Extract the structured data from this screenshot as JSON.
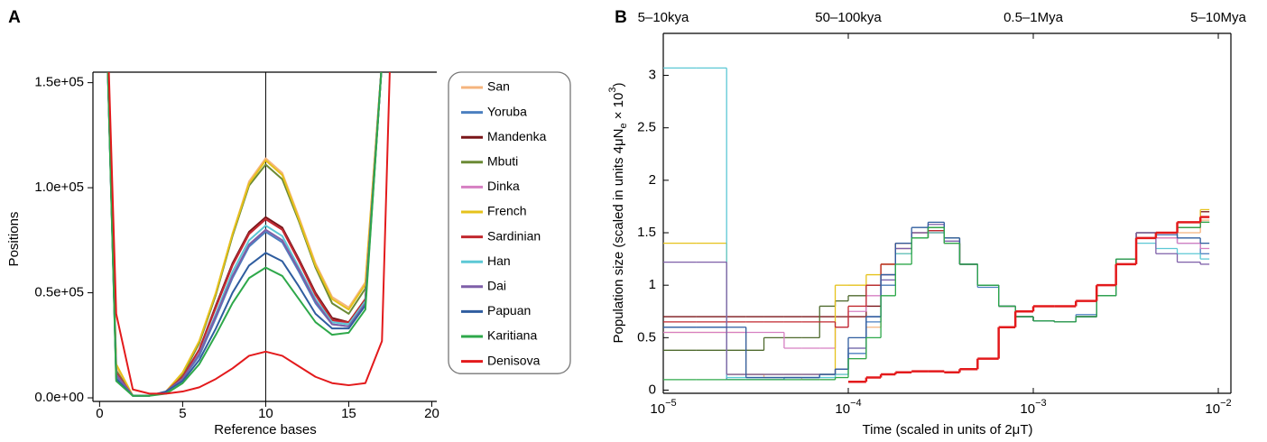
{
  "chart_data": [
    {
      "type": "line",
      "panel": "A",
      "xlabel": "Reference bases",
      "ylabel": "Positions",
      "x": [
        0,
        1,
        2,
        3,
        4,
        5,
        6,
        7,
        8,
        9,
        10,
        11,
        12,
        13,
        14,
        15,
        16,
        17,
        18
      ],
      "xlim": [
        -0.4,
        20.3
      ],
      "xticks": [
        0,
        5,
        10,
        15,
        20
      ],
      "ylim": [
        -1700,
        155000
      ],
      "yticks": [
        {
          "value": 0,
          "label": "0.0e+00"
        },
        {
          "value": 50000,
          "label": "0.5e+05"
        },
        {
          "value": 100000,
          "label": "1.0e+05"
        },
        {
          "value": 150000,
          "label": "1.5e+05"
        }
      ],
      "vline": 10,
      "legend": "right",
      "series": [
        {
          "name": "San",
          "color": "#f5b47e",
          "values": [
            300000,
            15000,
            1000,
            1000,
            3000,
            12000,
            27000,
            50000,
            78000,
            103000,
            114000,
            107000,
            86000,
            64000,
            48000,
            43000,
            55000,
            160000,
            300000
          ]
        },
        {
          "name": "Yoruba",
          "color": "#4b7fc0",
          "values": [
            300000,
            10000,
            1000,
            1000,
            3000,
            9000,
            20000,
            38000,
            57000,
            72000,
            79000,
            74000,
            60000,
            45000,
            35000,
            34000,
            45000,
            160000,
            300000
          ]
        },
        {
          "name": "Mandenka",
          "color": "#7a1518",
          "values": [
            300000,
            12000,
            1000,
            1000,
            3000,
            10000,
            23000,
            44000,
            64000,
            79000,
            86000,
            81000,
            66000,
            50000,
            38000,
            36000,
            47000,
            160000,
            300000
          ]
        },
        {
          "name": "Mbuti",
          "color": "#6b8a35",
          "values": [
            300000,
            13000,
            1000,
            1000,
            3000,
            11000,
            26000,
            49000,
            77000,
            101000,
            111000,
            104000,
            84000,
            62000,
            45000,
            40000,
            52000,
            160000,
            300000
          ]
        },
        {
          "name": "Dinka",
          "color": "#d67fc2",
          "values": [
            300000,
            12000,
            1000,
            1000,
            3000,
            10000,
            23000,
            43000,
            63000,
            78000,
            85000,
            80000,
            65000,
            49000,
            37000,
            35000,
            46000,
            160000,
            300000
          ]
        },
        {
          "name": "French",
          "color": "#e6c21b",
          "values": [
            300000,
            16000,
            1000,
            1000,
            3000,
            12000,
            27000,
            50000,
            78000,
            102000,
            113000,
            106000,
            85000,
            63000,
            47000,
            42000,
            54000,
            160000,
            300000
          ]
        },
        {
          "name": "Sardinian",
          "color": "#c1272d",
          "values": [
            300000,
            12000,
            1000,
            1000,
            3000,
            10000,
            23000,
            43000,
            63000,
            78000,
            85000,
            80000,
            65000,
            49000,
            37000,
            36000,
            47000,
            160000,
            300000
          ]
        },
        {
          "name": "Han",
          "color": "#5cc8d5",
          "values": [
            300000,
            11000,
            1000,
            1000,
            3000,
            9000,
            21000,
            40000,
            60000,
            75000,
            82000,
            77000,
            62000,
            47000,
            36000,
            35000,
            46000,
            160000,
            300000
          ]
        },
        {
          "name": "Dai",
          "color": "#7e5fa8",
          "values": [
            300000,
            11000,
            1000,
            1000,
            3000,
            9000,
            21000,
            39000,
            58000,
            73000,
            80000,
            75000,
            61000,
            46000,
            35000,
            34000,
            45000,
            160000,
            300000
          ]
        },
        {
          "name": "Papuan",
          "color": "#2f5d9f",
          "values": [
            300000,
            9000,
            1000,
            1000,
            3000,
            8000,
            18000,
            33000,
            50000,
            63000,
            69000,
            65000,
            53000,
            40000,
            33000,
            33000,
            44000,
            160000,
            300000
          ]
        },
        {
          "name": "Karitiana",
          "color": "#2ea84a",
          "values": [
            300000,
            8000,
            1000,
            1000,
            2000,
            7000,
            16000,
            30000,
            45000,
            57000,
            62000,
            58000,
            47000,
            36000,
            30000,
            31000,
            42000,
            160000,
            300000
          ]
        },
        {
          "name": "Denisova",
          "color": "#e31a1c",
          "values": [
            300000,
            40000,
            4000,
            2000,
            2000,
            3000,
            5000,
            9000,
            14000,
            20000,
            22000,
            20000,
            15000,
            10000,
            7000,
            6000,
            7000,
            27000,
            300000
          ]
        }
      ]
    },
    {
      "type": "step",
      "panel": "B",
      "xlabel": "Time (scaled in units of 2μT)",
      "ylabel": {
        "text": "Population size (scaled in units 4μN",
        "subscript": "e",
        "suffix": " × 10",
        "superscript": "3",
        "end": ")"
      },
      "xscale": "log",
      "x": [
        1e-05,
        1.5e-05,
        2.2e-05,
        2.8e-05,
        3.5e-05,
        4.5e-05,
        5.6e-05,
        7e-05,
        8.5e-05,
        0.0001,
        0.000125,
        0.00015,
        0.00018,
        0.00022,
        0.00027,
        0.00033,
        0.0004,
        0.0005,
        0.00065,
        0.0008,
        0.001,
        0.0013,
        0.0017,
        0.0022,
        0.0028,
        0.0036,
        0.0046,
        0.006,
        0.008
      ],
      "xlim": [
        1e-05,
        0.0117
      ],
      "xticks": [
        {
          "value": 1e-05,
          "label": "10",
          "exponent": "−5"
        },
        {
          "value": 0.0001,
          "label": "10",
          "exponent": "−4"
        },
        {
          "value": 0.001,
          "label": "10",
          "exponent": "−3"
        },
        {
          "value": 0.01,
          "label": "10",
          "exponent": "−2"
        }
      ],
      "x2ticks": [
        {
          "value": 1e-05,
          "label": "5–10kya"
        },
        {
          "value": 0.0001,
          "label": "50–100kya"
        },
        {
          "value": 0.001,
          "label": "0.5–1Mya"
        },
        {
          "value": 0.01,
          "label": "5–10Mya"
        }
      ],
      "ylim": [
        -0.03,
        3.4
      ],
      "yticks": [
        0,
        0.5,
        1,
        1.5,
        2,
        2.5,
        3
      ],
      "series": [
        {
          "color": "#f5b47e",
          "values": [
            0.55,
            0.55,
            0.55,
            0.15,
            0.12,
            0.12,
            0.1,
            0.1,
            0.15,
            0.3,
            0.6,
            1.0,
            1.3,
            1.45,
            1.5,
            1.4,
            1.2,
            1.0,
            0.8,
            0.7,
            0.66,
            0.65,
            0.7,
            0.9,
            1.25,
            1.45,
            1.45,
            1.5,
            1.62
          ]
        },
        {
          "color": "#4b7fc0",
          "values": [
            0.6,
            0.6,
            0.1,
            0.1,
            0.1,
            0.12,
            0.12,
            0.15,
            0.2,
            0.35,
            0.65,
            1.0,
            1.3,
            1.45,
            1.52,
            1.4,
            1.2,
            0.98,
            0.8,
            0.7,
            0.66,
            0.65,
            0.72,
            0.9,
            1.25,
            1.5,
            1.48,
            1.4,
            1.3
          ]
        },
        {
          "color": "#7a1518",
          "values": [
            0.7,
            0.7,
            0.7,
            0.7,
            0.7,
            0.7,
            0.7,
            0.7,
            0.7,
            0.7,
            0.8,
            1.1,
            1.35,
            1.45,
            1.5,
            1.4,
            1.2,
            1.0,
            0.8,
            0.7,
            0.66,
            0.65,
            0.7,
            0.9,
            1.25,
            1.5,
            1.5,
            1.6,
            1.7
          ]
        },
        {
          "color": "#4f6a2e",
          "values": [
            0.38,
            0.38,
            0.38,
            0.38,
            0.5,
            0.5,
            0.5,
            0.8,
            0.85,
            0.9,
            1.0,
            1.2,
            1.4,
            1.5,
            1.55,
            1.45,
            1.2,
            1.0,
            0.8,
            0.7,
            0.66,
            0.65,
            0.7,
            0.9,
            1.25,
            1.5,
            1.5,
            1.55,
            1.6
          ]
        },
        {
          "color": "#d67fc2",
          "values": [
            0.55,
            0.55,
            0.55,
            0.55,
            0.55,
            0.4,
            0.4,
            0.4,
            0.6,
            0.75,
            0.9,
            1.1,
            1.3,
            1.45,
            1.5,
            1.4,
            1.2,
            1.0,
            0.8,
            0.7,
            0.66,
            0.65,
            0.7,
            0.9,
            1.25,
            1.45,
            1.45,
            1.4,
            1.35
          ]
        },
        {
          "color": "#e6c21b",
          "values": [
            1.4,
            1.4,
            0.15,
            0.15,
            0.15,
            0.15,
            0.15,
            0.15,
            1.0,
            1.0,
            1.1,
            1.2,
            1.3,
            1.45,
            1.5,
            1.4,
            1.2,
            1.0,
            0.8,
            0.7,
            0.66,
            0.65,
            0.7,
            0.9,
            1.25,
            1.45,
            1.5,
            1.6,
            1.72
          ]
        },
        {
          "color": "#c1272d",
          "values": [
            0.65,
            0.65,
            0.65,
            0.65,
            0.65,
            0.65,
            0.65,
            0.65,
            0.6,
            0.8,
            1.0,
            1.2,
            1.4,
            1.5,
            1.52,
            1.4,
            1.2,
            1.0,
            0.8,
            0.7,
            0.66,
            0.65,
            0.7,
            0.9,
            1.25,
            1.45,
            1.5,
            1.55,
            1.65
          ]
        },
        {
          "color": "#5cc8d5",
          "values": [
            3.07,
            3.07,
            0.12,
            0.12,
            0.12,
            0.12,
            0.12,
            0.12,
            0.15,
            0.4,
            0.7,
            1.05,
            1.3,
            1.45,
            1.5,
            1.4,
            1.2,
            1.0,
            0.8,
            0.7,
            0.66,
            0.65,
            0.7,
            0.9,
            1.25,
            1.4,
            1.35,
            1.3,
            1.25
          ]
        },
        {
          "color": "#7e5fa8",
          "values": [
            1.22,
            1.22,
            0.15,
            0.15,
            0.15,
            0.15,
            0.15,
            0.15,
            0.2,
            0.4,
            0.7,
            1.05,
            1.35,
            1.5,
            1.58,
            1.42,
            1.2,
            1.0,
            0.8,
            0.7,
            0.66,
            0.65,
            0.7,
            0.9,
            1.25,
            1.5,
            1.3,
            1.22,
            1.2
          ]
        },
        {
          "color": "#2f5d9f",
          "values": [
            0.6,
            0.6,
            0.6,
            0.12,
            0.12,
            0.12,
            0.12,
            0.15,
            0.2,
            0.5,
            0.7,
            1.1,
            1.4,
            1.55,
            1.6,
            1.45,
            1.2,
            1.0,
            0.8,
            0.7,
            0.66,
            0.65,
            0.7,
            0.9,
            1.25,
            1.45,
            1.5,
            1.45,
            1.4
          ]
        },
        {
          "color": "#2ea84a",
          "values": [
            0.1,
            0.1,
            0.1,
            0.1,
            0.1,
            0.1,
            0.1,
            0.1,
            0.12,
            0.3,
            0.5,
            0.9,
            1.2,
            1.45,
            1.55,
            1.4,
            1.2,
            1.0,
            0.8,
            0.7,
            0.66,
            0.65,
            0.7,
            0.9,
            1.25,
            1.45,
            1.5,
            1.55,
            1.6
          ]
        },
        {
          "color": "#e31a1c",
          "linewidth": 2.5,
          "values": [
            null,
            null,
            null,
            null,
            null,
            null,
            null,
            null,
            null,
            0.08,
            0.12,
            0.15,
            0.17,
            0.18,
            0.18,
            0.17,
            0.2,
            0.3,
            0.6,
            0.75,
            0.8,
            0.8,
            0.85,
            1.0,
            1.2,
            1.45,
            1.5,
            1.6,
            1.65
          ]
        }
      ]
    }
  ]
}
